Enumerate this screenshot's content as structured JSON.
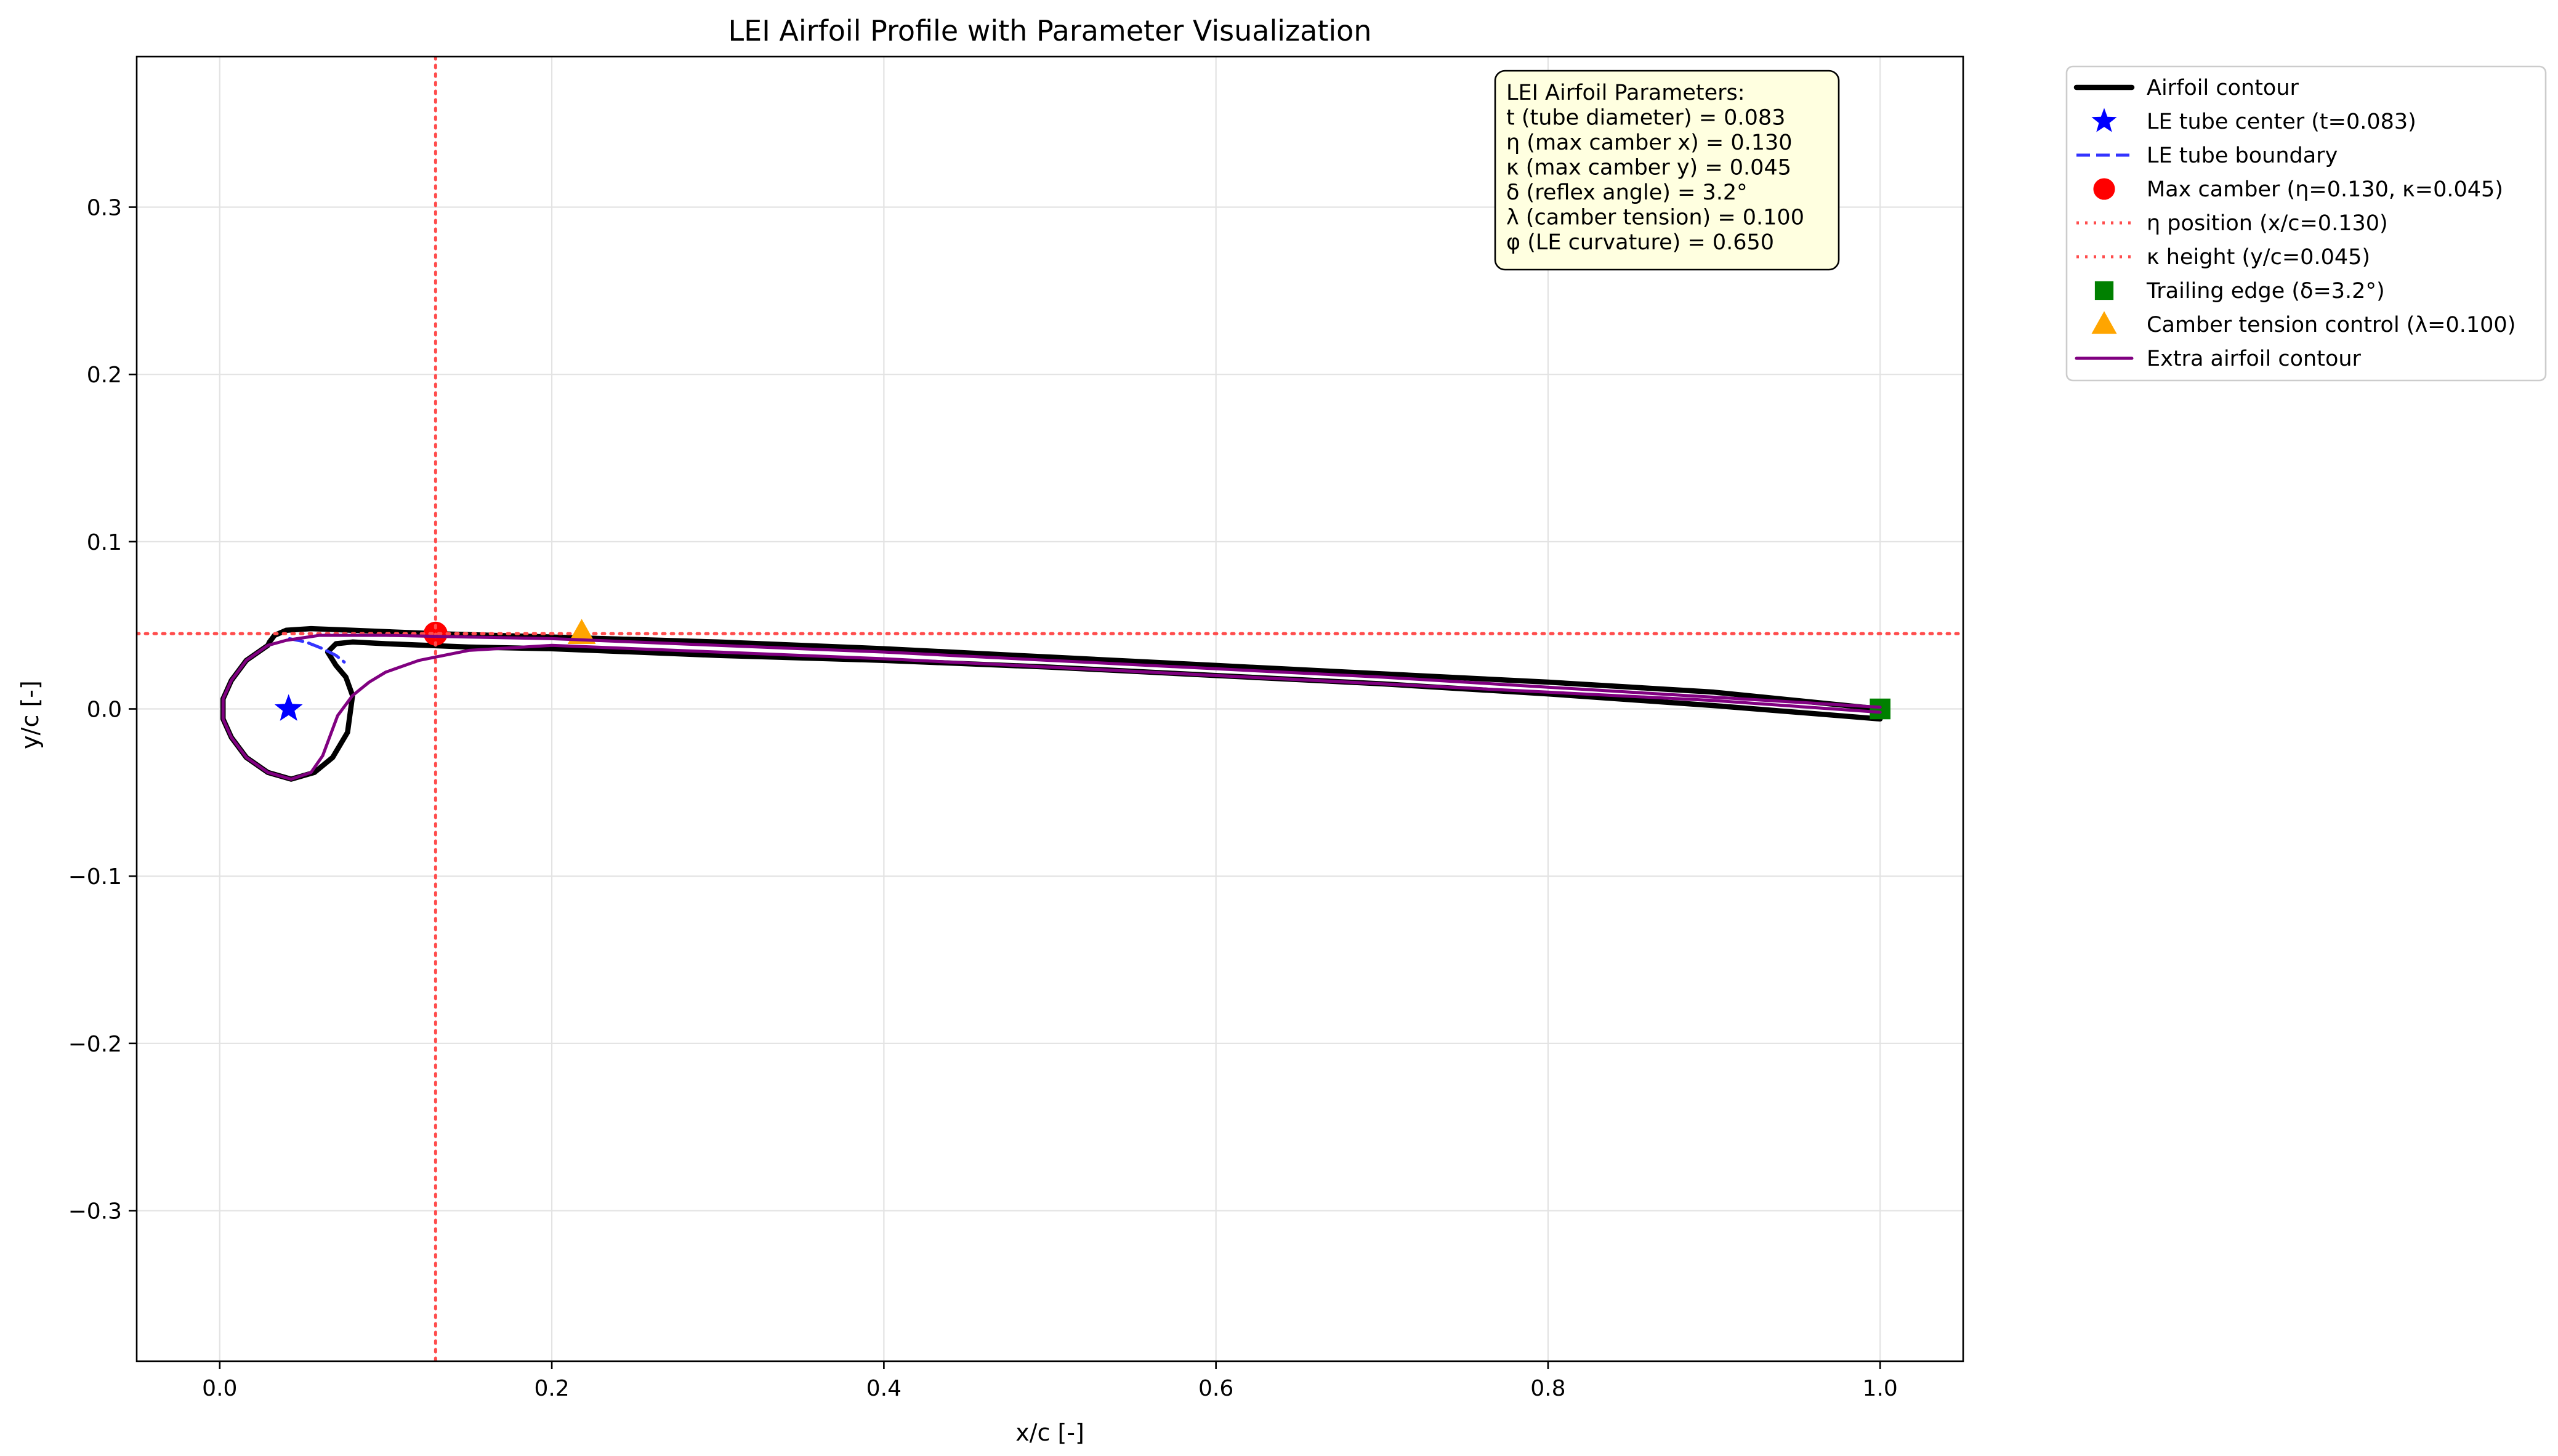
{
  "chart_data": {
    "type": "line",
    "title": "LEI Airfoil Profile with Parameter Visualization",
    "xlabel": "x/c [-]",
    "ylabel": "y/c [-]",
    "xlim": [
      -0.05,
      1.05
    ],
    "ylim": [
      -0.39,
      0.39
    ],
    "xticks": [
      0.0,
      0.2,
      0.4,
      0.6,
      0.8,
      1.0
    ],
    "xtick_labels": [
      "0.0",
      "0.2",
      "0.4",
      "0.6",
      "0.8",
      "1.0"
    ],
    "yticks": [
      -0.3,
      -0.2,
      -0.1,
      0.0,
      0.1,
      0.2,
      0.3
    ],
    "ytick_labels": [
      "−0.3",
      "−0.2",
      "−0.1",
      "0.0",
      "0.1",
      "0.2",
      "0.3"
    ],
    "grid": true,
    "legend_position": "outside-right",
    "params_box": {
      "lines": [
        "LEI Airfoil Parameters:",
        "t (tube diameter) = 0.083",
        "η (max camber x) = 0.130",
        "κ (max camber y) = 0.045",
        "δ (reflex angle) = 3.2°",
        "λ (camber tension) = 0.100",
        "φ (LE curvature) = 0.650"
      ]
    },
    "series": [
      {
        "name": "Airfoil contour",
        "kind": "line",
        "color": "#000000",
        "x": [
          1.0,
          0.9,
          0.8,
          0.7,
          0.6,
          0.5,
          0.4,
          0.3,
          0.2,
          0.15,
          0.1,
          0.08,
          0.07,
          0.065,
          0.07,
          0.076,
          0.08,
          0.077,
          0.068,
          0.057,
          0.043,
          0.029,
          0.016,
          0.007,
          0.002,
          0.002,
          0.007,
          0.016,
          0.029,
          0.03,
          0.033,
          0.04,
          0.055,
          0.08,
          0.13,
          0.2,
          0.3,
          0.4,
          0.5,
          0.6,
          0.7,
          0.8,
          0.9,
          1.0
        ],
        "y": [
          -0.006,
          0.002,
          0.009,
          0.015,
          0.02,
          0.025,
          0.029,
          0.032,
          0.036,
          0.037,
          0.039,
          0.04,
          0.039,
          0.034,
          0.026,
          0.019,
          0.008,
          -0.014,
          -0.029,
          -0.038,
          -0.042,
          -0.038,
          -0.029,
          -0.017,
          -0.006,
          0.006,
          0.017,
          0.029,
          0.038,
          0.04,
          0.044,
          0.047,
          0.048,
          0.047,
          0.045,
          0.043,
          0.04,
          0.036,
          0.031,
          0.026,
          0.021,
          0.016,
          0.01,
          0.0
        ]
      },
      {
        "name": "LE tube center (t=0.083)",
        "kind": "marker",
        "marker": "star",
        "color": "#0000ff",
        "x": [
          0.0415
        ],
        "y": [
          0.0
        ]
      },
      {
        "name": "LE tube boundary",
        "kind": "line",
        "dash": "dashed",
        "color": "#3333ff",
        "x": [
          0.042,
          0.052,
          0.062,
          0.07,
          0.075
        ],
        "y": [
          0.042,
          0.04,
          0.036,
          0.032,
          0.028
        ]
      },
      {
        "name": "Max camber (η=0.130, κ=0.045)",
        "kind": "marker",
        "marker": "circle",
        "color": "#ff0000",
        "x": [
          0.13
        ],
        "y": [
          0.045
        ]
      },
      {
        "name": "η position (x/c=0.130)",
        "kind": "vline",
        "dash": "dotted",
        "color": "#ff4d4d",
        "x": [
          0.13
        ]
      },
      {
        "name": "κ height (y/c=0.045)",
        "kind": "hline",
        "dash": "dotted",
        "color": "#ff4d4d",
        "y": [
          0.045
        ]
      },
      {
        "name": "Trailing edge (δ=3.2°)",
        "kind": "marker",
        "marker": "square",
        "color": "#008000",
        "x": [
          1.0
        ],
        "y": [
          0.0
        ]
      },
      {
        "name": "Camber tension control (λ=0.100)",
        "kind": "marker",
        "marker": "triangle",
        "color": "#ffa500",
        "x": [
          0.218
        ],
        "y": [
          0.045
        ]
      },
      {
        "name": "Extra airfoil contour",
        "kind": "line",
        "color": "#800080",
        "x": [
          1.0,
          0.9,
          0.8,
          0.7,
          0.6,
          0.5,
          0.4,
          0.3,
          0.2,
          0.15,
          0.12,
          0.1,
          0.09,
          0.08,
          0.071,
          0.062,
          0.055,
          0.043,
          0.029,
          0.016,
          0.007,
          0.002,
          0.002,
          0.007,
          0.016,
          0.029,
          0.04,
          0.06,
          0.1,
          0.15,
          0.2,
          0.3,
          0.4,
          0.5,
          0.6,
          0.7,
          0.8,
          0.9,
          1.0
        ],
        "y": [
          -0.002,
          0.005,
          0.01,
          0.015,
          0.02,
          0.025,
          0.03,
          0.034,
          0.038,
          0.035,
          0.029,
          0.022,
          0.016,
          0.008,
          -0.004,
          -0.028,
          -0.038,
          -0.042,
          -0.038,
          -0.029,
          -0.017,
          -0.006,
          0.006,
          0.017,
          0.029,
          0.038,
          0.041,
          0.044,
          0.044,
          0.043,
          0.042,
          0.038,
          0.034,
          0.029,
          0.024,
          0.019,
          0.013,
          0.007,
          0.001
        ]
      }
    ]
  }
}
